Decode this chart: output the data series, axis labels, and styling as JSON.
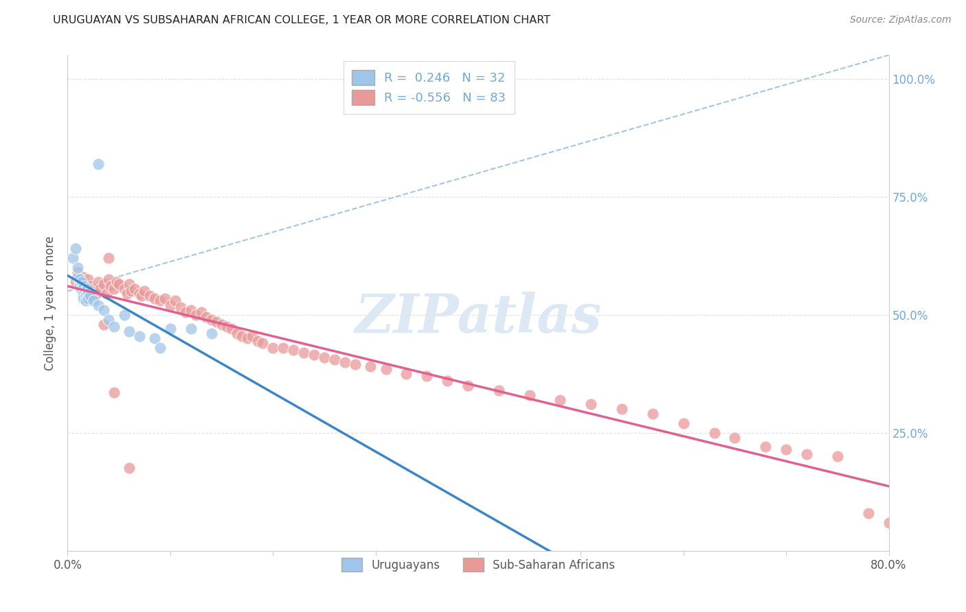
{
  "title": "URUGUAYAN VS SUBSAHARAN AFRICAN COLLEGE, 1 YEAR OR MORE CORRELATION CHART",
  "source": "Source: ZipAtlas.com",
  "ylabel": "College, 1 year or more",
  "xlim": [
    0.0,
    0.8
  ],
  "ylim": [
    0.0,
    1.05
  ],
  "legend_R1": "0.246",
  "legend_N1": "32",
  "legend_R2": "-0.556",
  "legend_N2": "83",
  "uruguayan_x": [
    0.005,
    0.008,
    0.01,
    0.01,
    0.012,
    0.012,
    0.013,
    0.014,
    0.015,
    0.015,
    0.016,
    0.017,
    0.018,
    0.018,
    0.019,
    0.02,
    0.02,
    0.022,
    0.025,
    0.03,
    0.035,
    0.04,
    0.045,
    0.055,
    0.06,
    0.07,
    0.085,
    0.09,
    0.1,
    0.12,
    0.14,
    0.03
  ],
  "uruguayan_y": [
    0.62,
    0.64,
    0.58,
    0.6,
    0.56,
    0.575,
    0.555,
    0.57,
    0.545,
    0.535,
    0.56,
    0.55,
    0.54,
    0.53,
    0.555,
    0.545,
    0.535,
    0.54,
    0.53,
    0.52,
    0.51,
    0.49,
    0.475,
    0.5,
    0.465,
    0.455,
    0.45,
    0.43,
    0.47,
    0.47,
    0.46,
    0.82
  ],
  "subsaharan_x": [
    0.008,
    0.01,
    0.012,
    0.015,
    0.018,
    0.02,
    0.022,
    0.025,
    0.028,
    0.03,
    0.032,
    0.035,
    0.038,
    0.04,
    0.042,
    0.045,
    0.048,
    0.05,
    0.055,
    0.058,
    0.06,
    0.062,
    0.065,
    0.07,
    0.072,
    0.075,
    0.08,
    0.085,
    0.09,
    0.095,
    0.1,
    0.105,
    0.11,
    0.115,
    0.12,
    0.125,
    0.13,
    0.135,
    0.14,
    0.145,
    0.15,
    0.155,
    0.16,
    0.165,
    0.17,
    0.175,
    0.18,
    0.185,
    0.19,
    0.2,
    0.21,
    0.22,
    0.23,
    0.24,
    0.25,
    0.26,
    0.27,
    0.28,
    0.295,
    0.31,
    0.33,
    0.35,
    0.37,
    0.39,
    0.42,
    0.45,
    0.48,
    0.51,
    0.54,
    0.57,
    0.6,
    0.63,
    0.65,
    0.68,
    0.7,
    0.72,
    0.75,
    0.78,
    0.8,
    0.04,
    0.035,
    0.045,
    0.06
  ],
  "subsaharan_y": [
    0.57,
    0.59,
    0.56,
    0.58,
    0.565,
    0.575,
    0.56,
    0.555,
    0.545,
    0.57,
    0.555,
    0.565,
    0.545,
    0.575,
    0.56,
    0.555,
    0.57,
    0.565,
    0.555,
    0.545,
    0.565,
    0.55,
    0.555,
    0.545,
    0.54,
    0.55,
    0.54,
    0.535,
    0.53,
    0.535,
    0.52,
    0.53,
    0.515,
    0.505,
    0.51,
    0.5,
    0.505,
    0.495,
    0.49,
    0.485,
    0.48,
    0.475,
    0.47,
    0.46,
    0.455,
    0.45,
    0.455,
    0.445,
    0.44,
    0.43,
    0.43,
    0.425,
    0.42,
    0.415,
    0.41,
    0.405,
    0.4,
    0.395,
    0.39,
    0.385,
    0.375,
    0.37,
    0.36,
    0.35,
    0.34,
    0.33,
    0.32,
    0.31,
    0.3,
    0.29,
    0.27,
    0.25,
    0.24,
    0.22,
    0.215,
    0.205,
    0.2,
    0.08,
    0.06,
    0.62,
    0.48,
    0.335,
    0.175
  ],
  "blue_dot_color": "#9fc5e8",
  "pink_dot_color": "#ea9999",
  "blue_line_color": "#3d85c8",
  "pink_line_color": "#e06090",
  "dashed_line_color": "#9fc5e8",
  "watermark_color": "#dce9f5",
  "grid_color": "#e0e0e0",
  "background_color": "#ffffff",
  "right_axis_color": "#6fa8dc"
}
